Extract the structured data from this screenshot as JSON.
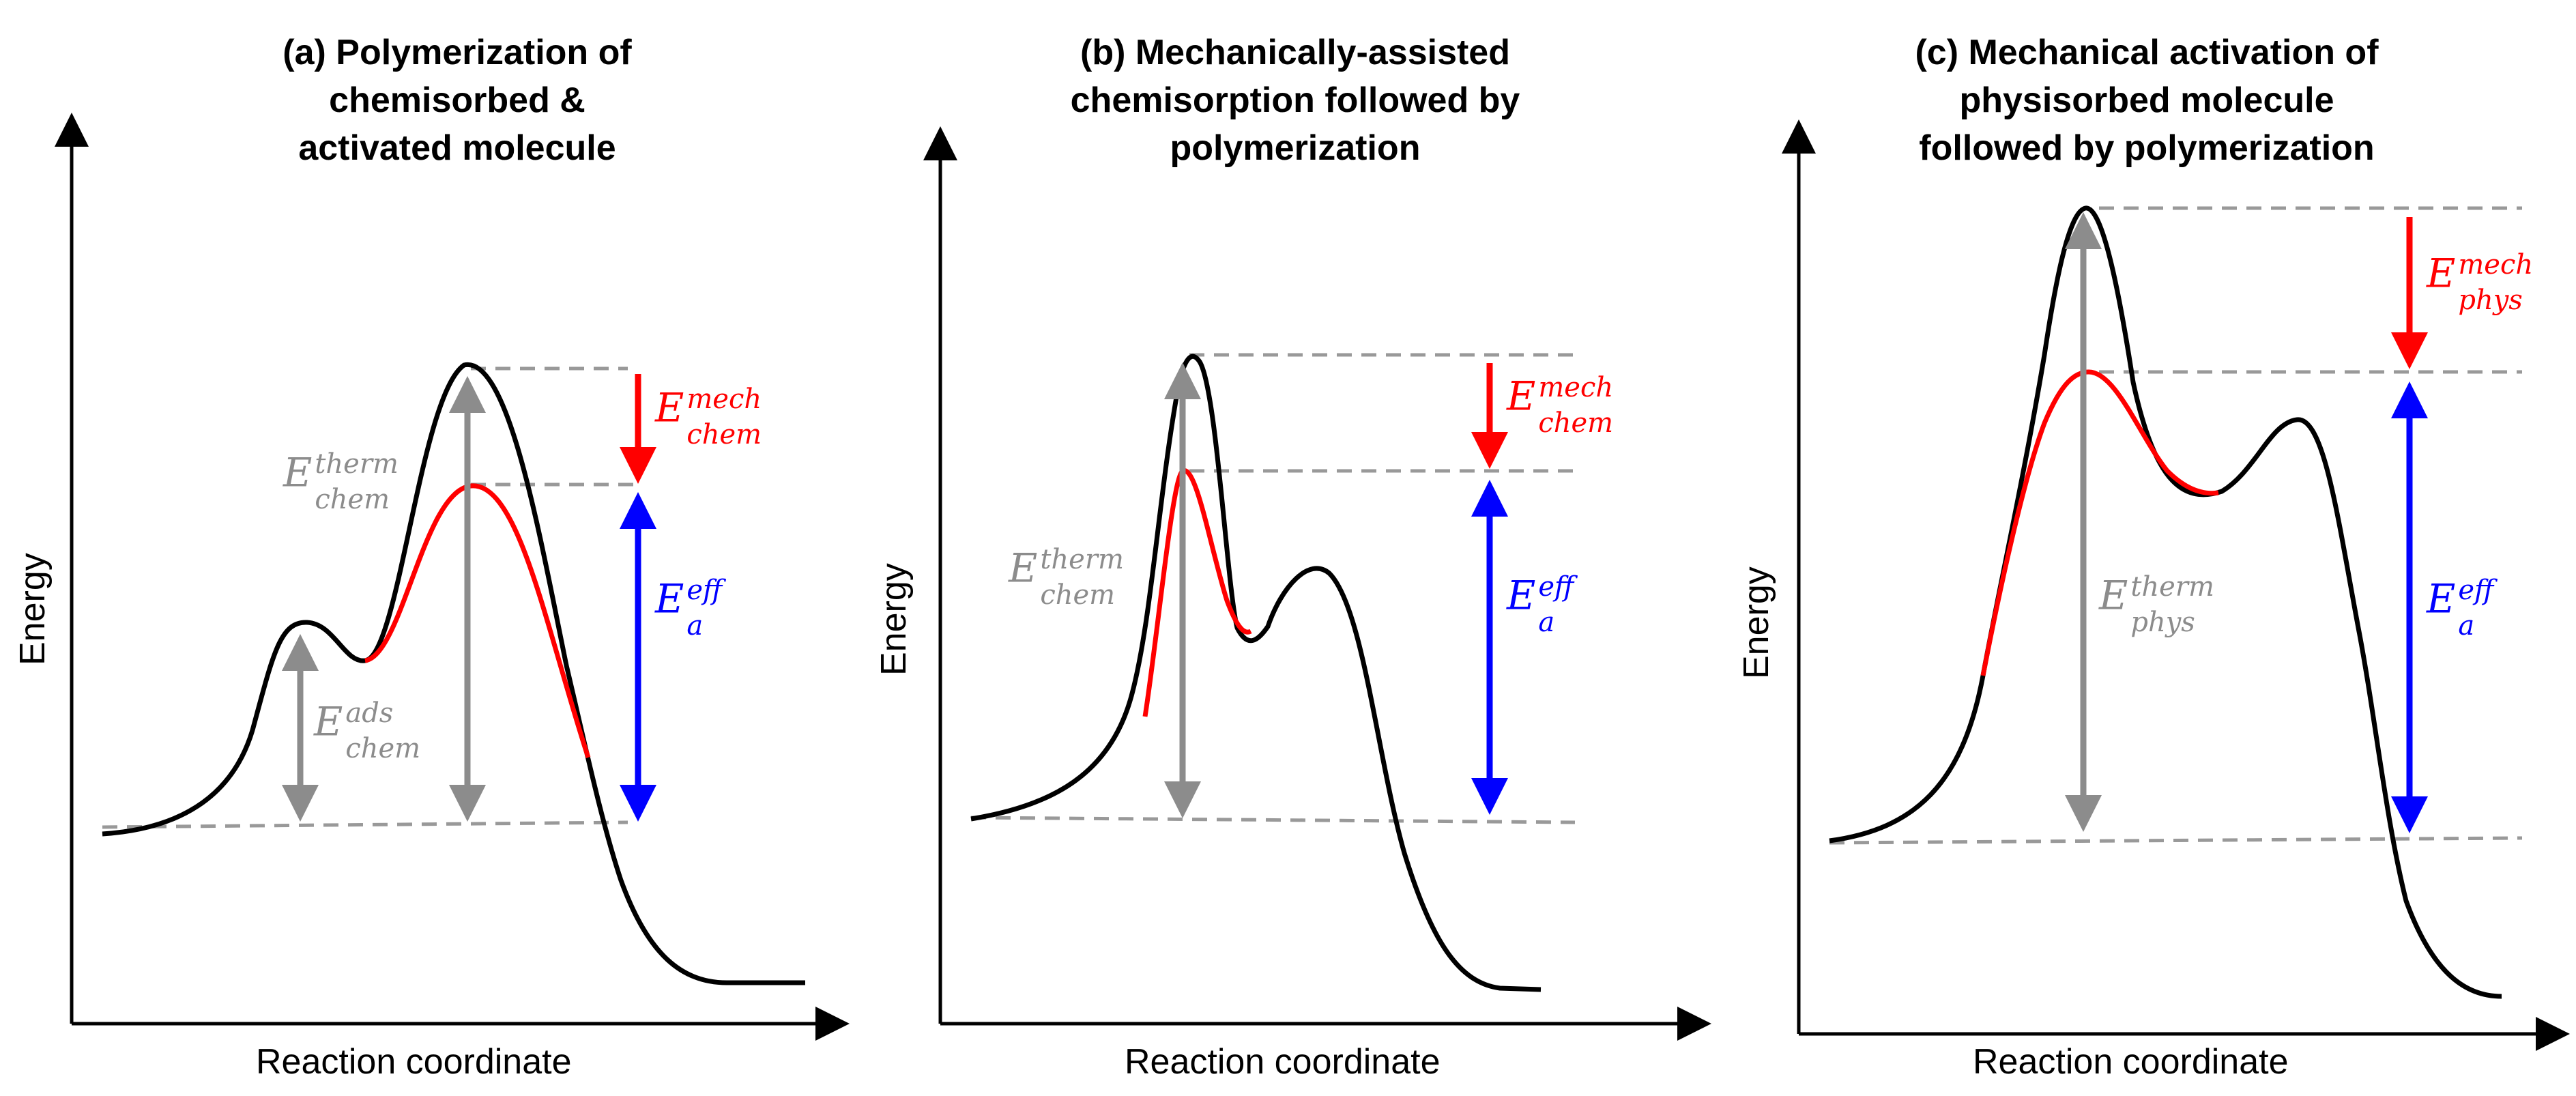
{
  "colors": {
    "curve": "#000000",
    "modified_curve": "#ff0000",
    "thermal_arrow": "#8c8c8c",
    "mech_arrow": "#ff0000",
    "eff_arrow": "#0000ff",
    "dashed": "#999999"
  },
  "axes": {
    "x_label": "Reaction coordinate",
    "y_label": "Energy"
  },
  "panels": [
    {
      "title_lines": [
        "(a)  Polymerization of",
        "chemisorbed &",
        "activated molecule"
      ],
      "labels": {
        "thermal": {
          "base": "E",
          "sup": "therm",
          "sub": "chem"
        },
        "adsorption": {
          "base": "E",
          "sup": "ads",
          "sub": "chem"
        },
        "mechanical": {
          "base": "E",
          "sup": "mech",
          "sub": "chem"
        },
        "effective": {
          "base": "E",
          "sup": "eff",
          "sub": "a"
        }
      }
    },
    {
      "title_lines": [
        "(b) Mechanically-assisted",
        "chemisorption followed by",
        "polymerization"
      ],
      "labels": {
        "thermal": {
          "base": "E",
          "sup": "therm",
          "sub": "chem"
        },
        "mechanical": {
          "base": "E",
          "sup": "mech",
          "sub": "chem"
        },
        "effective": {
          "base": "E",
          "sup": "eff",
          "sub": "a"
        }
      }
    },
    {
      "title_lines": [
        "(c) Mechanical activation of",
        "physisorbed molecule",
        "followed by polymerization"
      ],
      "labels": {
        "thermal": {
          "base": "E",
          "sup": "therm",
          "sub": "phys"
        },
        "mechanical": {
          "base": "E",
          "sup": "mech",
          "sub": "phys"
        },
        "effective": {
          "base": "E",
          "sup": "eff",
          "sub": "a"
        }
      }
    }
  ]
}
